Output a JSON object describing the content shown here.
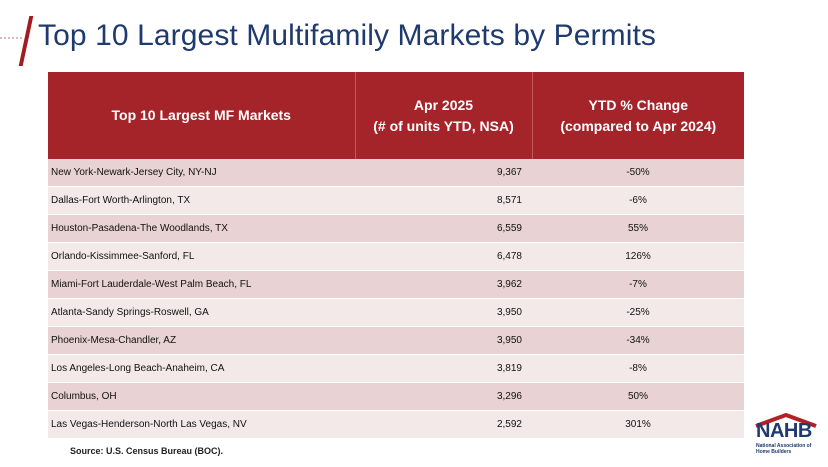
{
  "slide": {
    "title": "Top 10 Largest Multifamily Markets by Permits",
    "source": "Source: U.S. Census Bureau (BOC).",
    "logo": {
      "name": "NAHB",
      "subtitle": "National Association of Home Builders"
    },
    "colors": {
      "title": "#1f3a6e",
      "header_bg": "#a4242a",
      "row_odd": "#e8d2d3",
      "row_even": "#f4e9e9"
    }
  },
  "table": {
    "headers": {
      "market": "Top 10 Largest MF Markets",
      "units_line1": "Apr 2025",
      "units_line2": "(# of units YTD, NSA)",
      "change_line1": "YTD % Change",
      "change_line2": "(compared to Apr 2024)"
    },
    "rows": [
      {
        "market": "New York-Newark-Jersey City, NY-NJ",
        "units": "9,367",
        "change": "-50%"
      },
      {
        "market": "Dallas-Fort Worth-Arlington, TX",
        "units": "8,571",
        "change": "-6%"
      },
      {
        "market": "Houston-Pasadena-The Woodlands, TX",
        "units": "6,559",
        "change": "55%"
      },
      {
        "market": "Orlando-Kissimmee-Sanford, FL",
        "units": "6,478",
        "change": "126%"
      },
      {
        "market": "Miami-Fort Lauderdale-West Palm Beach, FL",
        "units": "3,962",
        "change": "-7%"
      },
      {
        "market": "Atlanta-Sandy Springs-Roswell, GA",
        "units": "3,950",
        "change": "-25%"
      },
      {
        "market": "Phoenix-Mesa-Chandler, AZ",
        "units": "3,950",
        "change": "-34%"
      },
      {
        "market": "Los Angeles-Long Beach-Anaheim, CA",
        "units": "3,819",
        "change": "-8%"
      },
      {
        "market": "Columbus, OH",
        "units": "3,296",
        "change": "50%"
      },
      {
        "market": "Las Vegas-Henderson-North Las Vegas, NV",
        "units": "2,592",
        "change": "301%"
      }
    ]
  }
}
